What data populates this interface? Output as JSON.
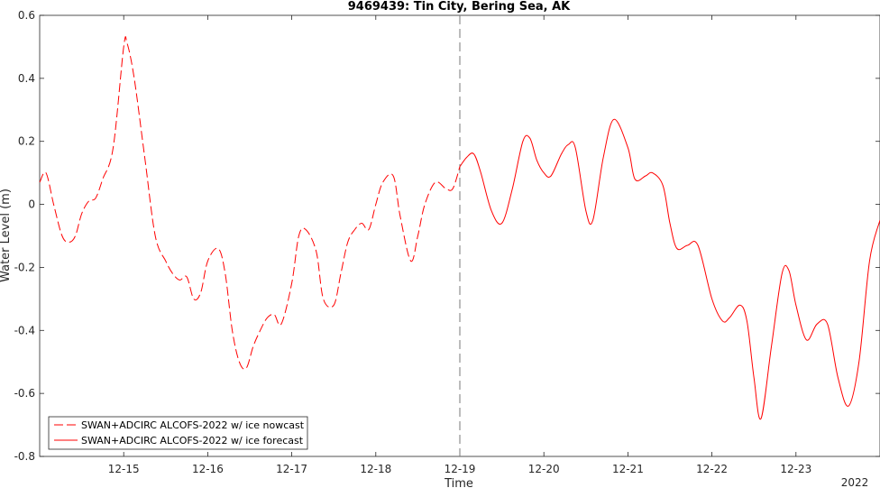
{
  "chart_data": {
    "type": "line",
    "title": "9469439: Tin City, Bering Sea, AK",
    "xlabel": "Time",
    "ylabel": "Water Level (m)",
    "year_label": "2022",
    "x_ticks": [
      "12-15",
      "12-16",
      "12-17",
      "12-18",
      "12-19",
      "12-20",
      "12-21",
      "12-22",
      "12-23"
    ],
    "xlim": [
      "12-14 00:00",
      "12-24 00:00"
    ],
    "ylim": [
      -0.8,
      0.6
    ],
    "y_ticks": [
      -0.8,
      -0.6,
      -0.4,
      -0.2,
      0,
      0.2,
      0.4,
      0.6
    ],
    "y_tick_labels": [
      "-0.8",
      "-0.6",
      "-0.4",
      "-0.2",
      "0",
      "0.2",
      "0.4",
      "0.6"
    ],
    "nowcast_boundary": "12-19 00:00",
    "grid": false,
    "legend_position": "bottom-left",
    "series": [
      {
        "name": "SWAN+ADCIRC ALCOFS-2022 w/ ice nowcast",
        "color": "#ff0000",
        "style": "dashed",
        "x": [
          "12-14 00:00",
          "12-14 01:48",
          "12-14 04:00",
          "12-14 06:24",
          "12-14 08:24",
          "12-14 10:12",
          "12-14 12:00",
          "12-14 14:00",
          "12-14 16:00",
          "12-14 18:00",
          "12-14 21:00",
          "12-15 00:00",
          "12-15 01:00",
          "12-15 03:00",
          "12-15 06:00",
          "12-15 09:00",
          "12-15 12:00",
          "12-15 14:00",
          "12-15 16:00",
          "12-15 18:00",
          "12-15 20:00",
          "12-15 22:00",
          "12-16 00:00",
          "12-16 03:00",
          "12-16 05:00",
          "12-16 07:00",
          "12-16 09:00",
          "12-16 11:00",
          "12-16 13:00",
          "12-16 15:00",
          "12-16 17:00",
          "12-16 19:00",
          "12-16 21:00",
          "12-17 00:00",
          "12-17 02:00",
          "12-17 04:00",
          "12-17 07:00",
          "12-17 09:00",
          "12-17 12:00",
          "12-17 14:00",
          "12-17 16:00",
          "12-17 18:00",
          "12-17 20:00",
          "12-17 22:00",
          "12-18 00:00",
          "12-18 02:00",
          "12-18 05:00",
          "12-18 07:00",
          "12-18 10:00",
          "12-18 12:00",
          "12-18 14:00",
          "12-18 17:00",
          "12-18 20:00",
          "12-18 22:00",
          "12-19 00:00"
        ],
        "y": [
          0.07,
          0.1,
          0.0,
          -0.1,
          -0.12,
          -0.1,
          -0.03,
          0.01,
          0.02,
          0.08,
          0.18,
          0.5,
          0.51,
          0.4,
          0.15,
          -0.1,
          -0.18,
          -0.22,
          -0.24,
          -0.23,
          -0.3,
          -0.28,
          -0.18,
          -0.14,
          -0.22,
          -0.4,
          -0.5,
          -0.52,
          -0.45,
          -0.4,
          -0.36,
          -0.35,
          -0.38,
          -0.25,
          -0.1,
          -0.08,
          -0.15,
          -0.3,
          -0.32,
          -0.22,
          -0.12,
          -0.08,
          -0.06,
          -0.08,
          0.0,
          0.07,
          0.09,
          -0.04,
          -0.18,
          -0.1,
          0.0,
          0.07,
          0.05,
          0.05,
          0.12
        ]
      },
      {
        "name": "SWAN+ADCIRC ALCOFS-2022 w/ ice forecast",
        "color": "#ff0000",
        "style": "solid",
        "x": [
          "12-19 00:00",
          "12-19 02:00",
          "12-19 04:00",
          "12-19 06:00",
          "12-19 09:00",
          "12-19 12:00",
          "12-19 15:00",
          "12-19 18:00",
          "12-19 20:00",
          "12-19 22:00",
          "12-20 00:00",
          "12-20 02:00",
          "12-20 05:00",
          "12-20 07:00",
          "12-20 09:00",
          "12-20 12:00",
          "12-20 14:00",
          "12-20 17:00",
          "12-20 20:00",
          "12-21 00:00",
          "12-21 02:00",
          "12-21 05:00",
          "12-21 07:00",
          "12-21 10:00",
          "12-21 12:00",
          "12-21 14:00",
          "12-21 17:00",
          "12-21 20:00",
          "12-22 00:00",
          "12-22 03:00",
          "12-22 05:00",
          "12-22 08:00",
          "12-22 10:00",
          "12-22 12:00",
          "12-22 14:00",
          "12-22 17:00",
          "12-22 20:00",
          "12-22 22:00",
          "12-23 00:00",
          "12-23 03:00",
          "12-23 06:00",
          "12-23 09:00",
          "12-23 12:00",
          "12-23 15:00",
          "12-23 18:00",
          "12-23 21:00",
          "12-24 00:00"
        ],
        "y": [
          0.12,
          0.15,
          0.16,
          0.1,
          -0.02,
          -0.06,
          0.05,
          0.2,
          0.21,
          0.14,
          0.1,
          0.09,
          0.16,
          0.19,
          0.18,
          -0.02,
          -0.05,
          0.15,
          0.27,
          0.18,
          0.08,
          0.09,
          0.1,
          0.06,
          -0.06,
          -0.14,
          -0.13,
          -0.13,
          -0.3,
          -0.37,
          -0.36,
          -0.32,
          -0.37,
          -0.55,
          -0.68,
          -0.45,
          -0.22,
          -0.21,
          -0.32,
          -0.43,
          -0.38,
          -0.38,
          -0.55,
          -0.64,
          -0.5,
          -0.18,
          -0.05
        ]
      }
    ]
  }
}
